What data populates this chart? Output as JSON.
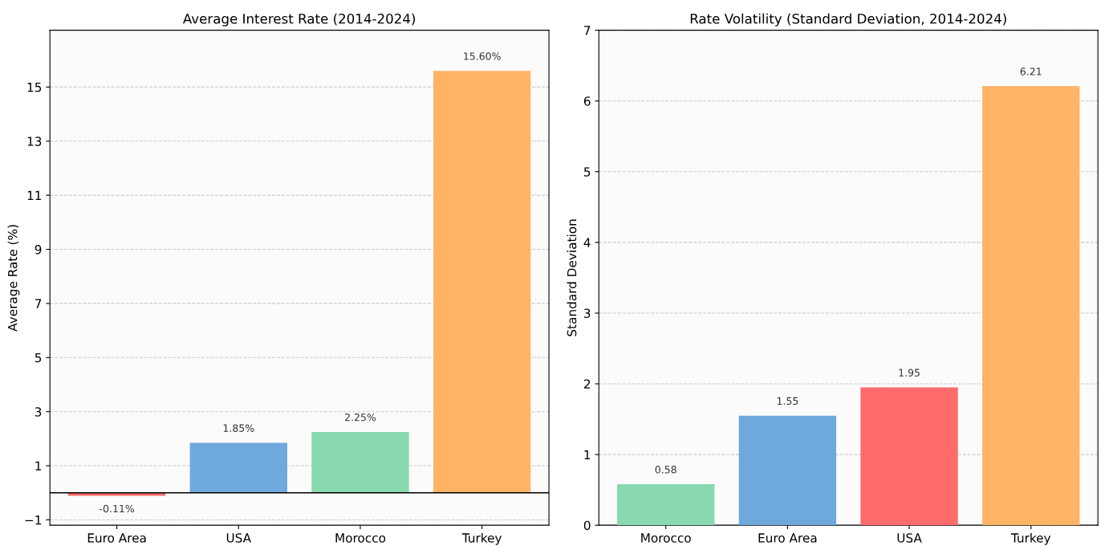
{
  "chart_data": [
    {
      "type": "bar",
      "title": "Average Interest Rate (2014-2024)",
      "ylabel": "Average Rate (%)",
      "categories": [
        "Euro Area",
        "USA",
        "Morocco",
        "Turkey"
      ],
      "values": [
        -0.11,
        1.85,
        2.25,
        15.6
      ],
      "colors": [
        "#ff6b6b",
        "#6fa8dc",
        "#88d8b0",
        "#ffb366"
      ],
      "value_labels": [
        "-0.11%",
        "1.85%",
        "2.25%",
        "15.60%"
      ],
      "ylim": [
        -1.2,
        17.1
      ],
      "yticks": [
        {
          "value": -1,
          "label": "−1"
        },
        1,
        3,
        5,
        7,
        9,
        11,
        13,
        15
      ],
      "grid": "y",
      "ref_lines": [
        {
          "axis": "y",
          "value": 0,
          "color": "#000000",
          "line_style": "solid"
        }
      ]
    },
    {
      "type": "bar",
      "title": "Rate Volatility (Standard Deviation, 2014-2024)",
      "ylabel": "Standard Deviation",
      "categories": [
        "Morocco",
        "Euro Area",
        "USA",
        "Turkey"
      ],
      "values": [
        0.58,
        1.55,
        1.95,
        6.21
      ],
      "colors": [
        "#88d8b0",
        "#6fa8dc",
        "#ff6b6b",
        "#ffb366"
      ],
      "data_labels": true,
      "ylim": [
        0,
        7
      ],
      "yticks": [
        0,
        1,
        2,
        3,
        4,
        5,
        6,
        7
      ],
      "grid": "y"
    }
  ]
}
